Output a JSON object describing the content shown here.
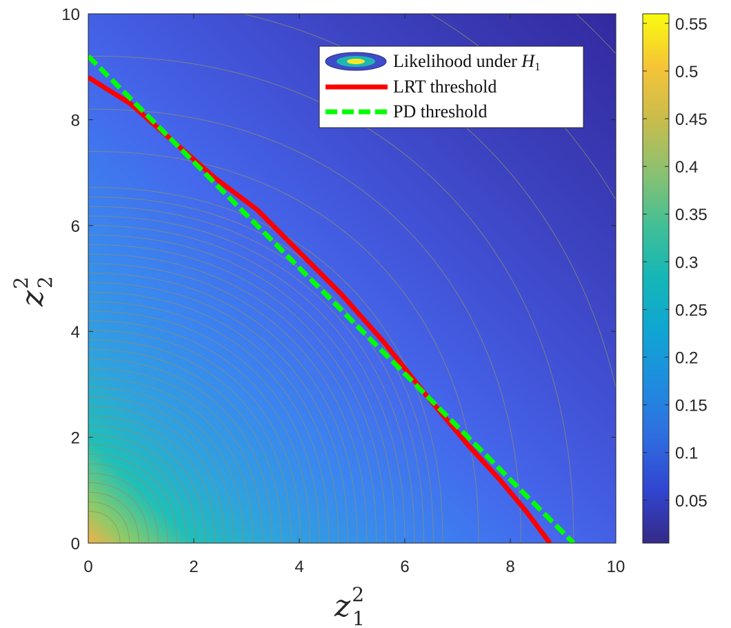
{
  "chart_data": {
    "type": "contour",
    "title": "",
    "xlabel": {
      "base": "z",
      "sup": "2",
      "sub": "1"
    },
    "ylabel": {
      "base": "z",
      "sup": "2",
      "sub": "2"
    },
    "xlim": [
      0,
      10
    ],
    "ylim": [
      0,
      10
    ],
    "x_ticks": [
      "0",
      "2",
      "4",
      "6",
      "8",
      "10"
    ],
    "y_ticks": [
      "0",
      "2",
      "4",
      "6",
      "8",
      "10"
    ],
    "grid": false,
    "legend": {
      "placement": "top-right",
      "entries": [
        {
          "name": "Likelihood under",
          "math": "H",
          "math_sub": "1",
          "kind": "contour"
        },
        {
          "name": "LRT threshold",
          "kind": "line",
          "color": "#ff0000",
          "dash": "solid"
        },
        {
          "name": "PD threshold",
          "kind": "line",
          "color": "#00ff00",
          "dash": "dashed"
        }
      ]
    },
    "colorbar": {
      "colormap": "parula",
      "range": [
        0.005,
        0.56
      ],
      "ticks": [
        "0.05",
        "0.1",
        "0.15",
        "0.2",
        "0.25",
        "0.3",
        "0.35",
        "0.4",
        "0.45",
        "0.5",
        "0.55"
      ]
    },
    "series": [
      {
        "name": "LRT threshold",
        "color": "#ff0000",
        "x": [
          0,
          0.8,
          1.6,
          2.4,
          3.2,
          4.0,
          4.8,
          5.6,
          6.4,
          7.2,
          7.8,
          8.3,
          8.75
        ],
        "y": [
          8.8,
          8.3,
          7.6,
          6.9,
          6.3,
          5.5,
          4.7,
          3.8,
          2.8,
          1.85,
          1.2,
          0.6,
          0.0
        ]
      },
      {
        "name": "PD threshold",
        "color": "#00ff00",
        "x": [
          0,
          9.2
        ],
        "y": [
          9.2,
          0
        ]
      }
    ]
  }
}
